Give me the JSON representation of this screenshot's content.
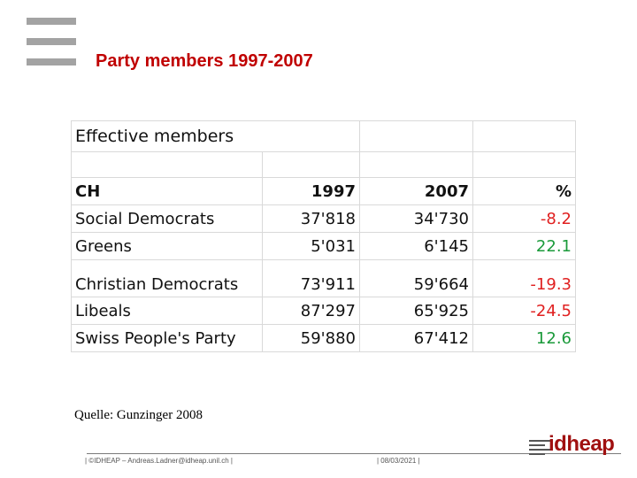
{
  "slide": {
    "title": "Party members 1997-2007"
  },
  "table": {
    "heading": "Effective members",
    "columns": [
      "CH",
      "1997",
      "2007",
      "%"
    ],
    "rows": [
      {
        "party": "Social Democrats",
        "y1997": "37'818",
        "y2007": "34'730",
        "pct": "-8.2",
        "trend": "down"
      },
      {
        "party": "Greens",
        "y1997": "5'031",
        "y2007": "6'145",
        "pct": "22.1",
        "trend": "up"
      },
      {
        "party": "Christian Democrats",
        "y1997": "73'911",
        "y2007": "59'664",
        "pct": "-19.3",
        "trend": "down"
      },
      {
        "party": "Libeals",
        "y1997": "87'297",
        "y2007": "65'925",
        "pct": "-24.5",
        "trend": "down"
      },
      {
        "party": "Swiss People's Party",
        "y1997": "59'880",
        "y2007": "67'412",
        "pct": "12.6",
        "trend": "up"
      }
    ]
  },
  "source": "Quelle: Gunzinger 2008",
  "footer": {
    "left": "| ©IDHEAP – Andreas.Ladner@idheap.unil.ch |",
    "date": "| 08/03/2021 |"
  },
  "logo": {
    "text": "idheap"
  },
  "colors": {
    "title": "#c00000",
    "negative": "#e02020",
    "positive": "#1a9a3a",
    "logo": "#a01010"
  }
}
